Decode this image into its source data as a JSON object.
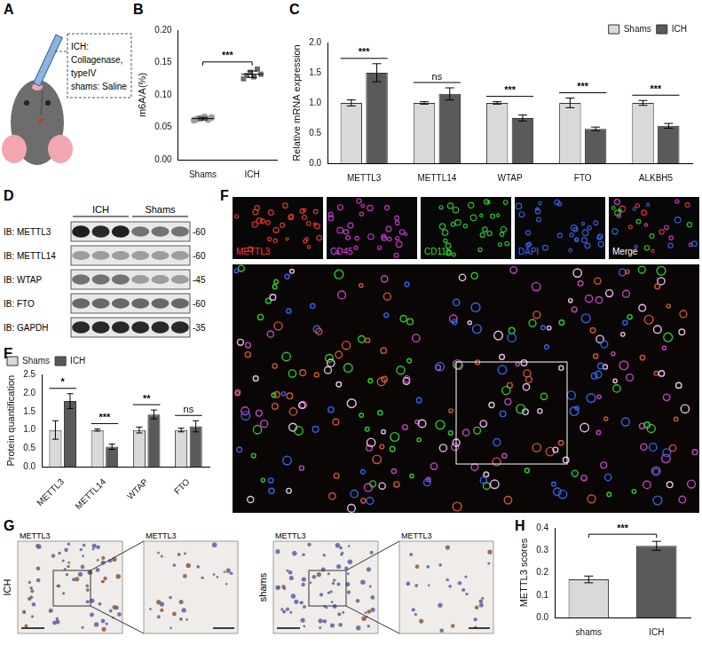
{
  "figure": {
    "A": {
      "panel": "A",
      "lines": [
        "ICH:",
        "Collagenase,",
        "typeIV",
        "shams: Saline"
      ]
    },
    "D": {
      "panel": "D",
      "lanes": [
        "ICH",
        "Shams"
      ],
      "blots": [
        {
          "label": "IB: METTL3",
          "size_label": "-60"
        },
        {
          "label": "IB: METTL14",
          "size_label": "-60"
        },
        {
          "label": "IB: WTAP",
          "size_label": "-45"
        },
        {
          "label": "IB: FTO",
          "size_label": "-60"
        },
        {
          "label": "IB: GAPDH",
          "size_label": "-35"
        }
      ]
    },
    "F": {
      "panel": "F",
      "channels": [
        {
          "label": "METTL3",
          "color": "#ff3b30"
        },
        {
          "label": "CD45",
          "color": "#e040e0"
        },
        {
          "label": "CD11b",
          "color": "#33dd33"
        },
        {
          "label": "DAPI",
          "color": "#3a6bff"
        },
        {
          "label": "Merge",
          "color": "#ffffff"
        }
      ]
    },
    "G": {
      "panel": "G",
      "stain": "METTL3",
      "groups": [
        "ICH",
        "shams"
      ]
    }
  },
  "chart_data": [
    {
      "panel": "B",
      "type": "strip",
      "categories": [
        "Shams",
        "ICH"
      ],
      "groups": [
        {
          "values": [
            0.061,
            0.063,
            0.064,
            0.066,
            0.062,
            0.065
          ],
          "mean": 0.0635,
          "error": 0.002,
          "color": "#9e9e9e",
          "marker": "circle"
        },
        {
          "values": [
            0.125,
            0.13,
            0.135,
            0.128,
            0.14,
            0.132
          ],
          "mean": 0.132,
          "error": 0.005,
          "color": "#6e6e6e",
          "marker": "square"
        }
      ],
      "y_label": "m6A/A(%)",
      "ylim": [
        0,
        0.2
      ],
      "yticks": [
        {
          "value": 0,
          "label": "0.00"
        },
        {
          "value": 0.05,
          "label": "0.05"
        },
        {
          "value": 0.1,
          "label": "0.10"
        },
        {
          "value": 0.15,
          "label": "0.15"
        },
        {
          "value": 0.2,
          "label": "0.20"
        }
      ],
      "annotations": [
        {
          "text": "***",
          "from": "Shams",
          "to": "ICH"
        }
      ],
      "grid": false
    },
    {
      "panel": "C",
      "type": "bar",
      "categories": [
        "METTL3",
        "METTL14",
        "WTAP",
        "FTO",
        "ALKBH5"
      ],
      "series": [
        {
          "name": "Shams",
          "color": "#d9d9d9",
          "values": [
            1.0,
            1.0,
            1.0,
            1.0,
            1.0
          ],
          "error": [
            0.05,
            0.02,
            0.02,
            0.08,
            0.04
          ]
        },
        {
          "name": "ICH",
          "color": "#5a5a5a",
          "values": [
            1.5,
            1.15,
            0.75,
            0.57,
            0.62
          ],
          "error": [
            0.15,
            0.1,
            0.05,
            0.03,
            0.04
          ]
        }
      ],
      "y_label": "Relative mRNA expression",
      "ylim": [
        0,
        2
      ],
      "yticks": [
        {
          "value": 0,
          "label": "0.0"
        },
        {
          "value": 0.5,
          "label": "0.5"
        },
        {
          "value": 1,
          "label": "1.0"
        },
        {
          "value": 1.5,
          "label": "1.5"
        },
        {
          "value": 2,
          "label": "2.0"
        }
      ],
      "annotations": [
        "***",
        "ns",
        "***",
        "***",
        "***"
      ],
      "legend": "top-right",
      "grid": false
    },
    {
      "panel": "E",
      "type": "bar",
      "categories": [
        "METTL3",
        "METTL14",
        "WTAP",
        "FTO"
      ],
      "series": [
        {
          "name": "Shams",
          "color": "#d9d9d9",
          "values": [
            1.0,
            1.0,
            1.0,
            1.0
          ],
          "error": [
            0.25,
            0.03,
            0.08,
            0.05
          ]
        },
        {
          "name": "ICH",
          "color": "#5a5a5a",
          "values": [
            1.78,
            0.55,
            1.42,
            1.1
          ],
          "error": [
            0.2,
            0.07,
            0.12,
            0.15
          ]
        }
      ],
      "y_label": "Protein quantification",
      "ylim": [
        0,
        2.5
      ],
      "yticks": [
        {
          "value": 0,
          "label": "0.0"
        },
        {
          "value": 0.5,
          "label": "0.5"
        },
        {
          "value": 1,
          "label": "1.0"
        },
        {
          "value": 1.5,
          "label": "1.5"
        },
        {
          "value": 2,
          "label": "2.0"
        },
        {
          "value": 2.5,
          "label": "2.5"
        }
      ],
      "annotations": [
        "*",
        "***",
        "**",
        "ns"
      ],
      "legend": "top-left",
      "grid": false
    },
    {
      "panel": "H",
      "type": "bar",
      "categories": [
        "shams",
        "ICH"
      ],
      "values": [
        0.17,
        0.32
      ],
      "error": [
        0.015,
        0.02
      ],
      "colors": [
        "#d9d9d9",
        "#5a5a5a"
      ],
      "y_label": "METTL3 scores",
      "ylim": [
        0,
        0.4
      ],
      "yticks": [
        {
          "value": 0,
          "label": "0.0"
        },
        {
          "value": 0.1,
          "label": "0.1"
        },
        {
          "value": 0.2,
          "label": "0.2"
        },
        {
          "value": 0.3,
          "label": "0.3"
        },
        {
          "value": 0.4,
          "label": "0.4"
        }
      ],
      "annotations": [
        {
          "text": "***",
          "from": "shams",
          "to": "ICH"
        }
      ],
      "grid": false
    }
  ]
}
